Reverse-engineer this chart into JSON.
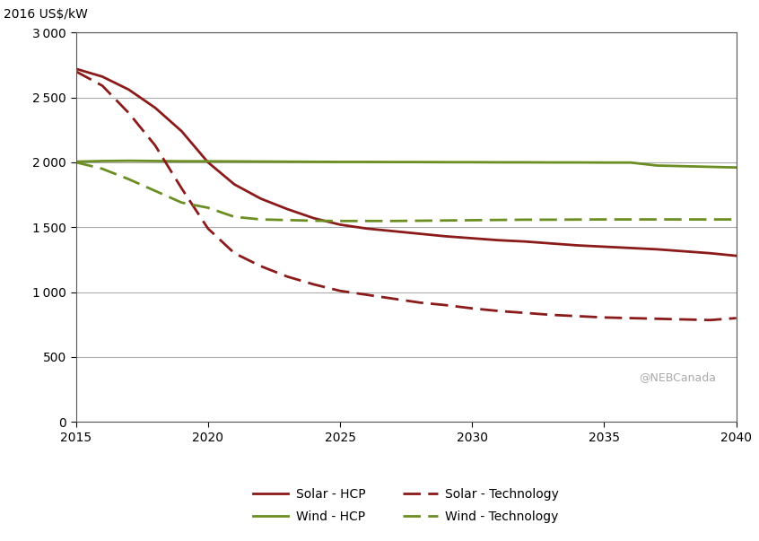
{
  "ylabel": "2016 US$/kW",
  "watermark": "@NEBCanada",
  "xlim": [
    2015,
    2040
  ],
  "ylim": [
    0,
    3000
  ],
  "yticks": [
    0,
    500,
    1000,
    1500,
    2000,
    2500,
    3000
  ],
  "xticks": [
    2015,
    2020,
    2025,
    2030,
    2035,
    2040
  ],
  "solar_hcp": {
    "x": [
      2015,
      2016,
      2017,
      2018,
      2019,
      2020,
      2021,
      2022,
      2023,
      2024,
      2025,
      2026,
      2027,
      2028,
      2029,
      2030,
      2031,
      2032,
      2033,
      2034,
      2035,
      2036,
      2037,
      2038,
      2039,
      2040
    ],
    "y": [
      2720,
      2660,
      2560,
      2420,
      2240,
      2000,
      1830,
      1720,
      1640,
      1570,
      1520,
      1490,
      1470,
      1450,
      1430,
      1415,
      1400,
      1390,
      1375,
      1360,
      1350,
      1340,
      1330,
      1315,
      1300,
      1280
    ],
    "color": "#8B1A1A",
    "linestyle": "solid",
    "linewidth": 2.0,
    "label": "Solar - HCP"
  },
  "wind_hcp": {
    "x": [
      2015,
      2016,
      2017,
      2018,
      2019,
      2020,
      2021,
      2022,
      2023,
      2024,
      2025,
      2026,
      2027,
      2028,
      2029,
      2030,
      2031,
      2032,
      2033,
      2034,
      2035,
      2036,
      2037,
      2038,
      2039,
      2040
    ],
    "y": [
      2005,
      2010,
      2012,
      2010,
      2008,
      2008,
      2007,
      2006,
      2005,
      2004,
      2003,
      2003,
      2002,
      2002,
      2001,
      2001,
      2000,
      2000,
      1999,
      1999,
      1998,
      1998,
      1975,
      1970,
      1965,
      1960
    ],
    "color": "#6B8E23",
    "linestyle": "solid",
    "linewidth": 2.0,
    "label": "Wind - HCP"
  },
  "solar_tech": {
    "x": [
      2015,
      2016,
      2017,
      2018,
      2019,
      2020,
      2021,
      2022,
      2023,
      2024,
      2025,
      2026,
      2027,
      2028,
      2029,
      2030,
      2031,
      2032,
      2033,
      2034,
      2035,
      2036,
      2037,
      2038,
      2039,
      2040
    ],
    "y": [
      2700,
      2590,
      2380,
      2130,
      1800,
      1490,
      1300,
      1200,
      1120,
      1060,
      1010,
      980,
      950,
      920,
      900,
      875,
      855,
      840,
      825,
      815,
      805,
      800,
      795,
      790,
      785,
      800
    ],
    "color": "#8B1A1A",
    "linestyle": "dashed",
    "linewidth": 2.0,
    "label": "Solar - Technology"
  },
  "wind_tech": {
    "x": [
      2015,
      2016,
      2017,
      2018,
      2019,
      2020,
      2021,
      2022,
      2023,
      2024,
      2025,
      2026,
      2027,
      2028,
      2029,
      2030,
      2031,
      2032,
      2033,
      2034,
      2035,
      2036,
      2037,
      2038,
      2039,
      2040
    ],
    "y": [
      2000,
      1950,
      1870,
      1780,
      1690,
      1650,
      1580,
      1560,
      1555,
      1550,
      1548,
      1548,
      1548,
      1550,
      1552,
      1554,
      1556,
      1558,
      1558,
      1559,
      1560,
      1560,
      1560,
      1560,
      1560,
      1560
    ],
    "color": "#6B8E23",
    "linestyle": "dashed",
    "linewidth": 2.0,
    "label": "Wind - Technology"
  },
  "background_color": "#ffffff",
  "grid_color": "#aaaaaa",
  "tick_fontsize": 10,
  "label_fontsize": 10,
  "legend_fontsize": 10
}
